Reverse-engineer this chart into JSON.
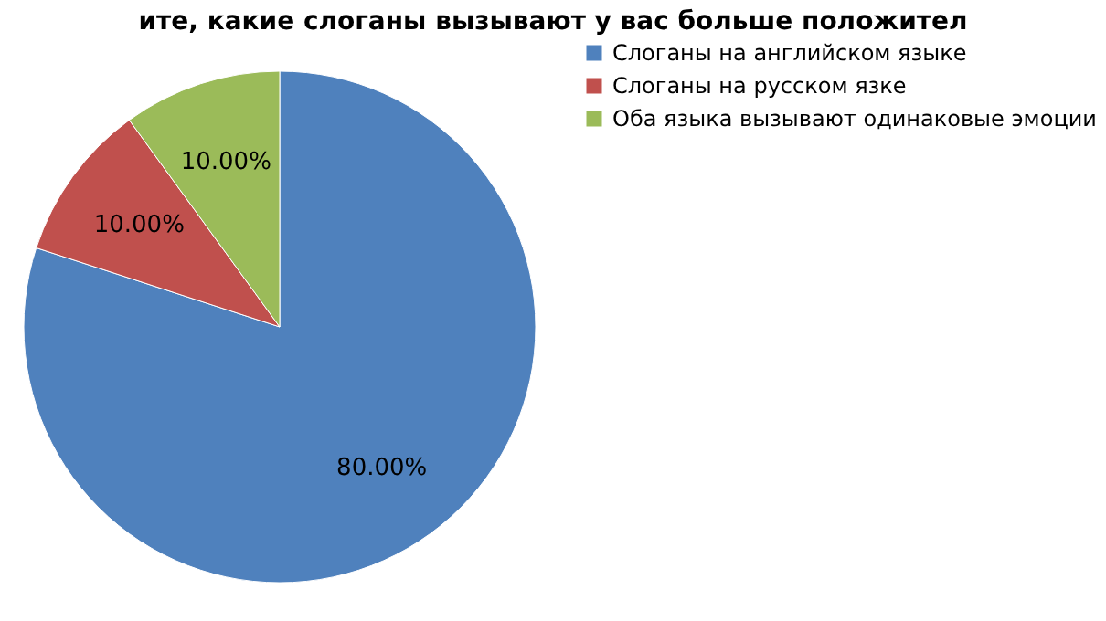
{
  "chart_data": {
    "type": "pie",
    "title": "ите, какие слоганы вызывают у вас больше положител",
    "categories": [
      "Слоганы на английском языке",
      "Слоганы на русском язке",
      "Оба языка вызывают одинаковые эмоции"
    ],
    "values": [
      80,
      10,
      10
    ],
    "colors": [
      "#4f81bd",
      "#c0504d",
      "#9bbb59"
    ],
    "value_labels": [
      "80.00%",
      "10.00%",
      "10.00%"
    ],
    "legend": "right"
  }
}
